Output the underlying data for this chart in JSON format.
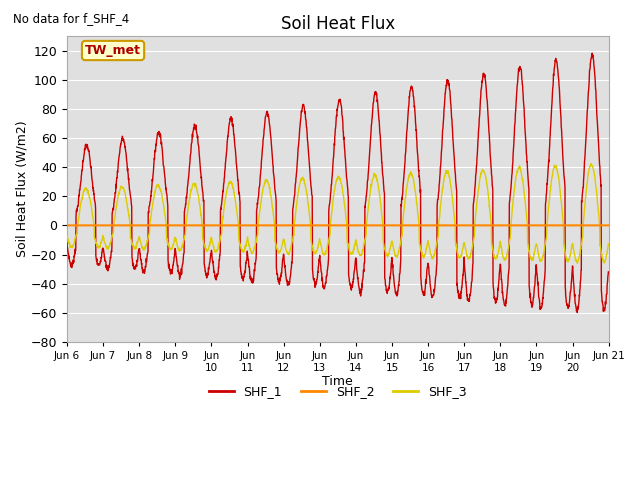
{
  "title": "Soil Heat Flux",
  "top_left_text": "No data for f_SHF_4",
  "ylabel": "Soil Heat Flux (W/m2)",
  "xlabel": "Time",
  "ylim": [
    -80,
    130
  ],
  "yticks": [
    -80,
    -60,
    -40,
    -20,
    0,
    20,
    40,
    60,
    80,
    100,
    120
  ],
  "bg_color": "#e0e0e0",
  "legend_box_label": "TW_met",
  "legend_box_bg": "#ffffcc",
  "legend_box_border": "#cc9900",
  "legend_box_text": "#aa0000",
  "series_colors": [
    "#cc0000",
    "#ff8800",
    "#ddcc00"
  ],
  "series_labels": [
    "SHF_1",
    "SHF_2",
    "SHF_3"
  ],
  "num_days": 15,
  "points_per_day": 144
}
